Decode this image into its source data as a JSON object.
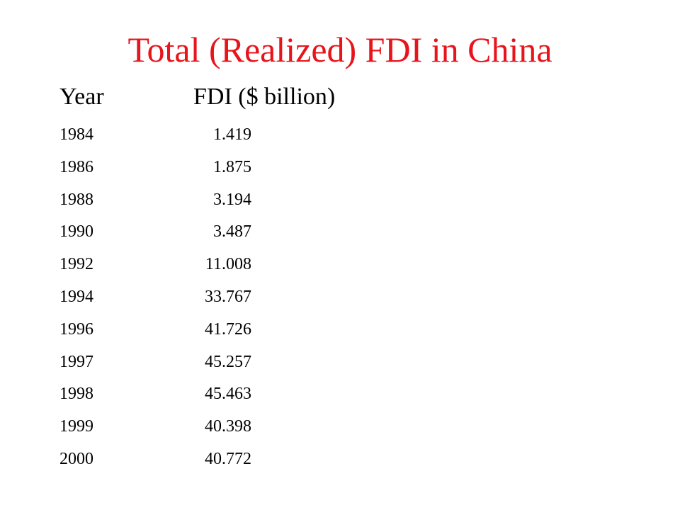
{
  "title": "Total (Realized) FDI in China",
  "colors": {
    "title": "#e8141b",
    "text": "#000000",
    "background": "#ffffff"
  },
  "table": {
    "headers": {
      "year": "Year",
      "fdi": "FDI ($ billion)"
    },
    "rows": [
      {
        "year": "1984",
        "fdi": "1.419"
      },
      {
        "year": "1986",
        "fdi": "1.875"
      },
      {
        "year": "1988",
        "fdi": "3.194"
      },
      {
        "year": "1990",
        "fdi": "3.487"
      },
      {
        "year": "1992",
        "fdi": "11.008"
      },
      {
        "year": "1994",
        "fdi": "33.767"
      },
      {
        "year": "1996",
        "fdi": "41.726"
      },
      {
        "year": "1997",
        "fdi": "45.257"
      },
      {
        "year": "1998",
        "fdi": "45.463"
      },
      {
        "year": "1999",
        "fdi": "40.398"
      },
      {
        "year": "2000",
        "fdi": "40.772"
      }
    ]
  }
}
